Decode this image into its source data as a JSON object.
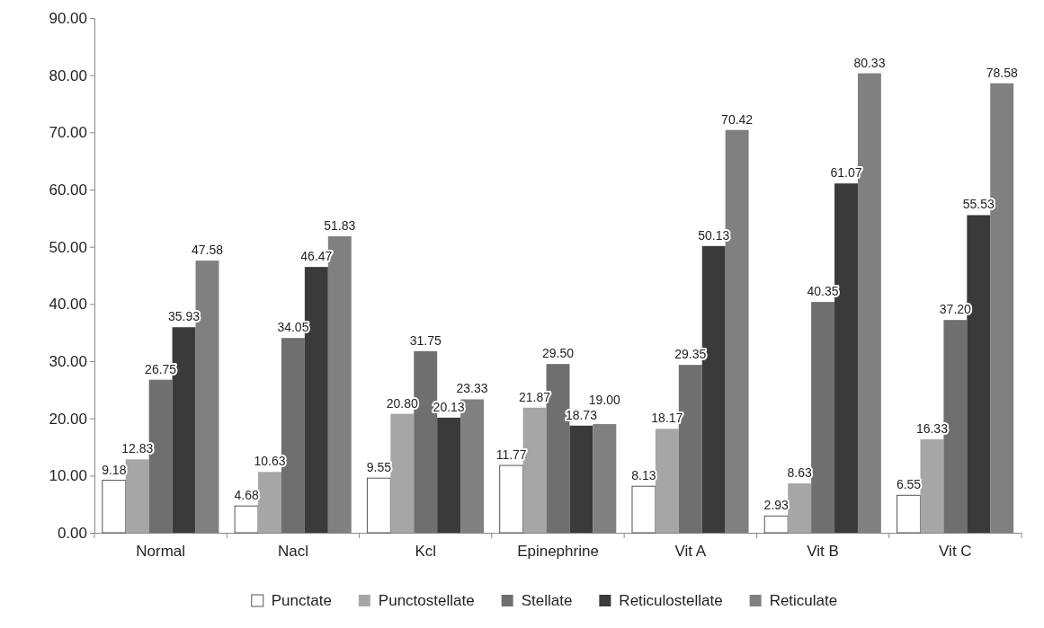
{
  "chart_data": {
    "type": "bar",
    "categories": [
      "Normal",
      "Nacl",
      "Kcl",
      "Epinephrine",
      "Vit A",
      "Vit B",
      "Vit C"
    ],
    "series": [
      {
        "name": "Punctate",
        "color": "#ffffff",
        "values": [
          9.18,
          4.68,
          9.55,
          11.77,
          8.13,
          2.93,
          6.55
        ],
        "value_labels": [
          "9.18",
          "4.68",
          "9.55",
          "11.77",
          "8.13",
          "2.93",
          "6.55"
        ]
      },
      {
        "name": "Punctostellate",
        "color": "#a6a6a6",
        "values": [
          12.83,
          10.63,
          20.8,
          21.87,
          18.17,
          8.63,
          16.33
        ],
        "value_labels": [
          "12.83",
          "10.63",
          "20.80",
          "21.87",
          "18.17",
          "8.63",
          "16.33"
        ]
      },
      {
        "name": "Stellate",
        "color": "#6f6f6f",
        "values": [
          26.75,
          34.05,
          31.75,
          29.5,
          29.35,
          40.35,
          37.2
        ],
        "value_labels": [
          "26.75",
          "34.05",
          "31.75",
          "29.50",
          "29.35",
          "40.35",
          "37.20"
        ]
      },
      {
        "name": "Reticulostellate",
        "color": "#3a3a3a",
        "values": [
          35.93,
          46.47,
          20.13,
          18.73,
          50.13,
          61.07,
          55.53
        ],
        "value_labels": [
          "35.93",
          "46.47",
          "20.13",
          "18.73",
          "50.13",
          "61.07",
          "55.53"
        ]
      },
      {
        "name": "Reticulate",
        "color": "#808080",
        "values": [
          47.58,
          51.83,
          23.33,
          19.0,
          70.42,
          80.33,
          78.58
        ],
        "value_labels": [
          "47.58",
          "51.83",
          "23.33",
          "19.00",
          "70.42",
          "80.33",
          "78.58"
        ]
      }
    ],
    "ylim": [
      0,
      90
    ],
    "yticks": [
      {
        "value": 0,
        "label": "0.00"
      },
      {
        "value": 10,
        "label": "10.00"
      },
      {
        "value": 20,
        "label": "20.00"
      },
      {
        "value": 30,
        "label": "30.00"
      },
      {
        "value": 40,
        "label": "40.00"
      },
      {
        "value": 50,
        "label": "50.00"
      },
      {
        "value": 60,
        "label": "60.00"
      },
      {
        "value": 70,
        "label": "70.00"
      },
      {
        "value": 80,
        "label": "80.00"
      },
      {
        "value": 90,
        "label": "90.00"
      }
    ],
    "legend": "bottom"
  }
}
